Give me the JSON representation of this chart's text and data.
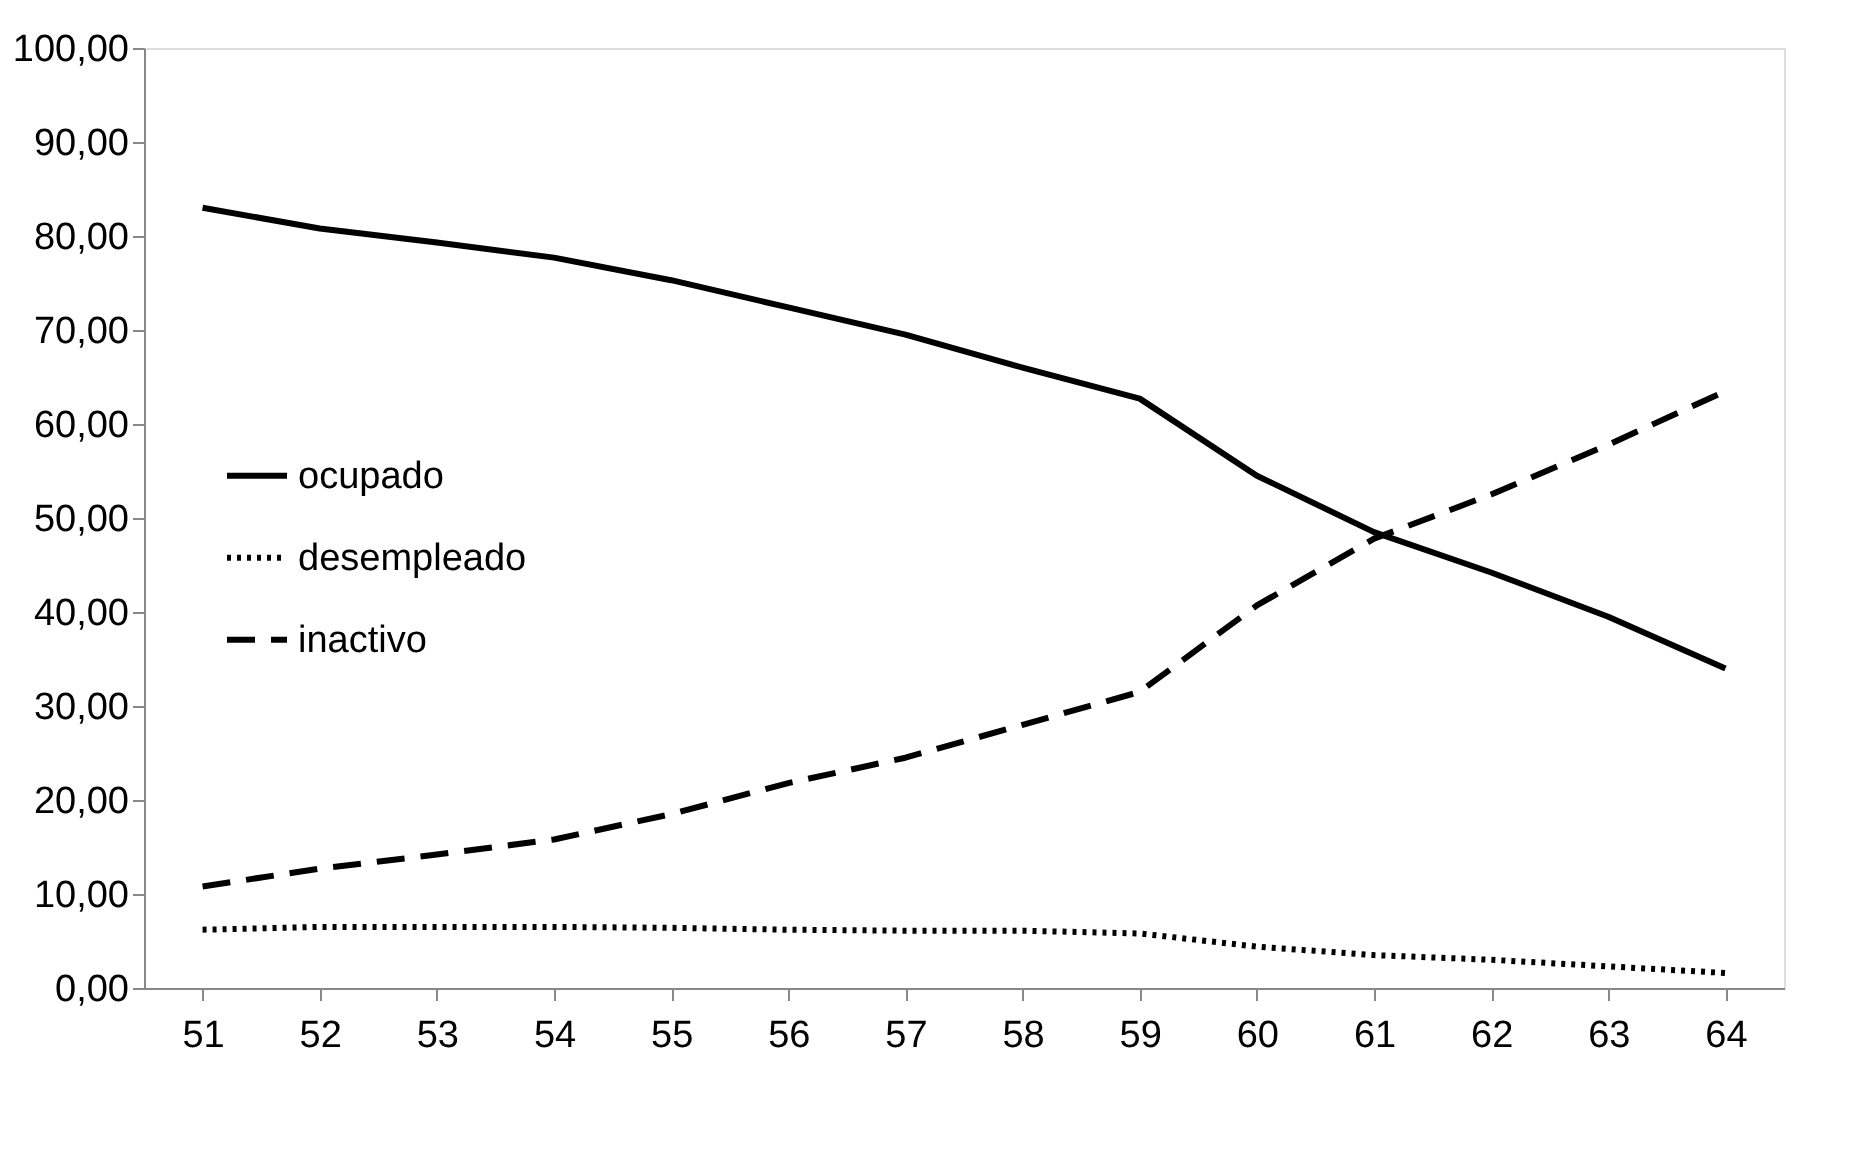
{
  "chart_data": {
    "type": "line",
    "categories": [
      "51",
      "52",
      "53",
      "54",
      "55",
      "56",
      "57",
      "58",
      "59",
      "60",
      "61",
      "62",
      "63",
      "64"
    ],
    "series": [
      {
        "name": "ocupado",
        "color": "#000000",
        "line_style": "solid",
        "values": [
          83,
          80.8,
          79.3,
          77.7,
          75.3,
          72.4,
          69.5,
          66,
          62.7,
          54.5,
          48.5,
          44.2,
          39.5,
          34
        ]
      },
      {
        "name": "desempleado",
        "color": "#000000",
        "line_style": "dotted",
        "values": [
          6.2,
          6.5,
          6.5,
          6.5,
          6.4,
          6.2,
          6.1,
          6.1,
          5.8,
          4.4,
          3.5,
          3.0,
          2.3,
          1.6
        ]
      },
      {
        "name": "inactivo",
        "color": "#000000",
        "line_style": "dashed",
        "values": [
          10.8,
          12.7,
          14.2,
          15.8,
          18.5,
          21.8,
          24.5,
          28,
          31.5,
          40.7,
          47.8,
          52.5,
          57.8,
          63.5
        ]
      }
    ],
    "ylim": [
      0,
      100
    ],
    "yticks": [
      {
        "value": 0,
        "label": "0,00"
      },
      {
        "value": 10,
        "label": "10,00"
      },
      {
        "value": 20,
        "label": "20,00"
      },
      {
        "value": 30,
        "label": "30,00"
      },
      {
        "value": 40,
        "label": "40,00"
      },
      {
        "value": 50,
        "label": "50,00"
      },
      {
        "value": 60,
        "label": "60,00"
      },
      {
        "value": 70,
        "label": "70,00"
      },
      {
        "value": 80,
        "label": "80,00"
      },
      {
        "value": 90,
        "label": "90,00"
      },
      {
        "value": 100,
        "label": "100,00"
      }
    ],
    "grid": false,
    "legend": "left",
    "marker": "none"
  }
}
